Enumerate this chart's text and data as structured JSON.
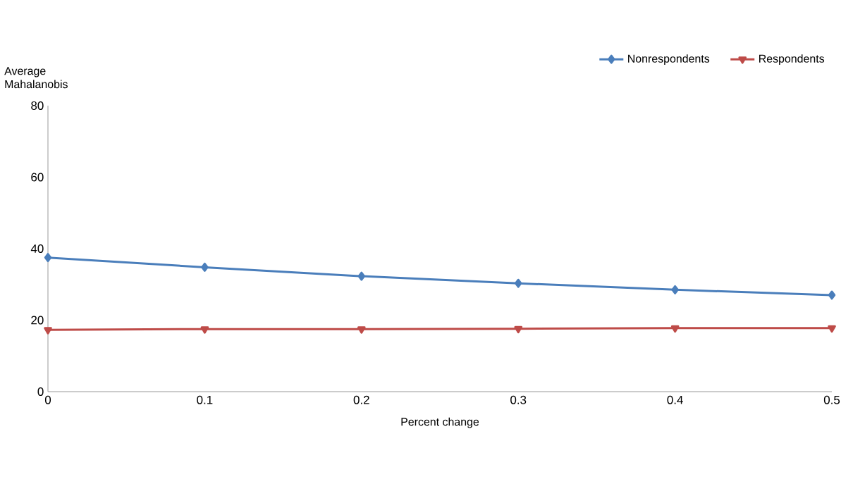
{
  "chart_data": {
    "type": "line",
    "xlabel": "Percent change",
    "ylabel": "Average Mahalanobis",
    "x": [
      0,
      0.1,
      0.2,
      0.3,
      0.4,
      0.5
    ],
    "series": [
      {
        "name": "Nonrespondents",
        "color": "#4a7ebb",
        "marker": "diamond",
        "values": [
          37.5,
          34.8,
          32.3,
          30.3,
          28.5,
          27.0
        ]
      },
      {
        "name": "Respondents",
        "color": "#be4b48",
        "marker": "triangle",
        "values": [
          17.3,
          17.5,
          17.5,
          17.6,
          17.8,
          17.8
        ]
      }
    ],
    "xlim": [
      0,
      0.5
    ],
    "xticks": [
      0,
      0.1,
      0.2,
      0.3,
      0.4,
      0.5
    ],
    "ylim": [
      0,
      80
    ],
    "yticks": [
      0,
      20,
      40,
      60,
      80
    ],
    "grid": false,
    "legend": "top right",
    "line_style": "solid"
  }
}
